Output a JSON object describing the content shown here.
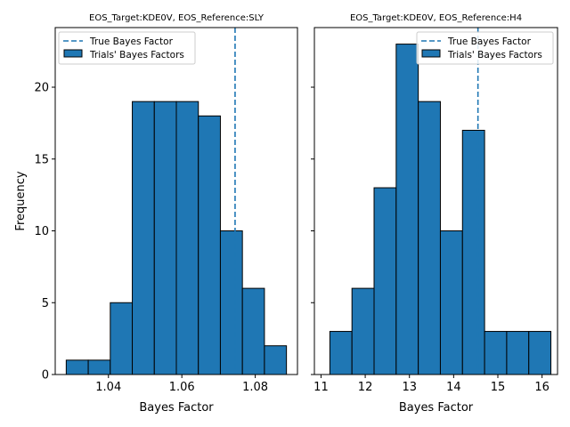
{
  "chart_data": [
    {
      "type": "histogram",
      "title": "EOS_Target:KDE0V, EOS_Reference:SLY",
      "xlabel": "Bayes Factor",
      "ylabel": "Frequency",
      "xlim": [
        1.0255,
        1.0915
      ],
      "ylim": [
        0,
        24.15
      ],
      "xticks": [
        1.04,
        1.06,
        1.08
      ],
      "xtick_labels": [
        "1.04",
        "1.06",
        "1.08"
      ],
      "yticks": [
        0,
        5,
        10,
        15,
        20
      ],
      "ytick_labels": [
        "0",
        "5",
        "10",
        "15",
        "20"
      ],
      "bin_edges": [
        1.0285,
        1.0345,
        1.0405,
        1.0465,
        1.0525,
        1.0585,
        1.0645,
        1.0705,
        1.0765,
        1.0825,
        1.0885
      ],
      "counts": [
        1,
        1,
        5,
        19,
        19,
        19,
        18,
        10,
        6,
        2
      ],
      "true_value": 1.0745,
      "bar_color": "#1f77b4",
      "line_color": "#1f77b4",
      "legend_position": "top-left",
      "legend": [
        "True Bayes Factor",
        "Trials' Bayes Factors"
      ]
    },
    {
      "type": "histogram",
      "title": "EOS_Target:KDE0V, EOS_Reference:H4",
      "xlabel": "Bayes Factor",
      "xlim": [
        10.85,
        16.35
      ],
      "ylim": [
        0,
        24.15
      ],
      "xticks": [
        11,
        12,
        13,
        14,
        15,
        16
      ],
      "xtick_labels": [
        "11",
        "12",
        "13",
        "14",
        "15",
        "16"
      ],
      "yticks": [
        0,
        5,
        10,
        15,
        20
      ],
      "bin_edges": [
        11.2,
        11.7,
        12.2,
        12.7,
        13.2,
        13.7,
        14.2,
        14.7,
        15.2,
        15.7,
        16.2
      ],
      "counts": [
        3,
        6,
        13,
        23,
        19,
        10,
        17,
        3,
        3,
        3
      ],
      "true_value": 14.55,
      "bar_color": "#1f77b4",
      "line_color": "#1f77b4",
      "legend_position": "top-right",
      "legend": [
        "True Bayes Factor",
        "Trials' Bayes Factors"
      ]
    }
  ]
}
